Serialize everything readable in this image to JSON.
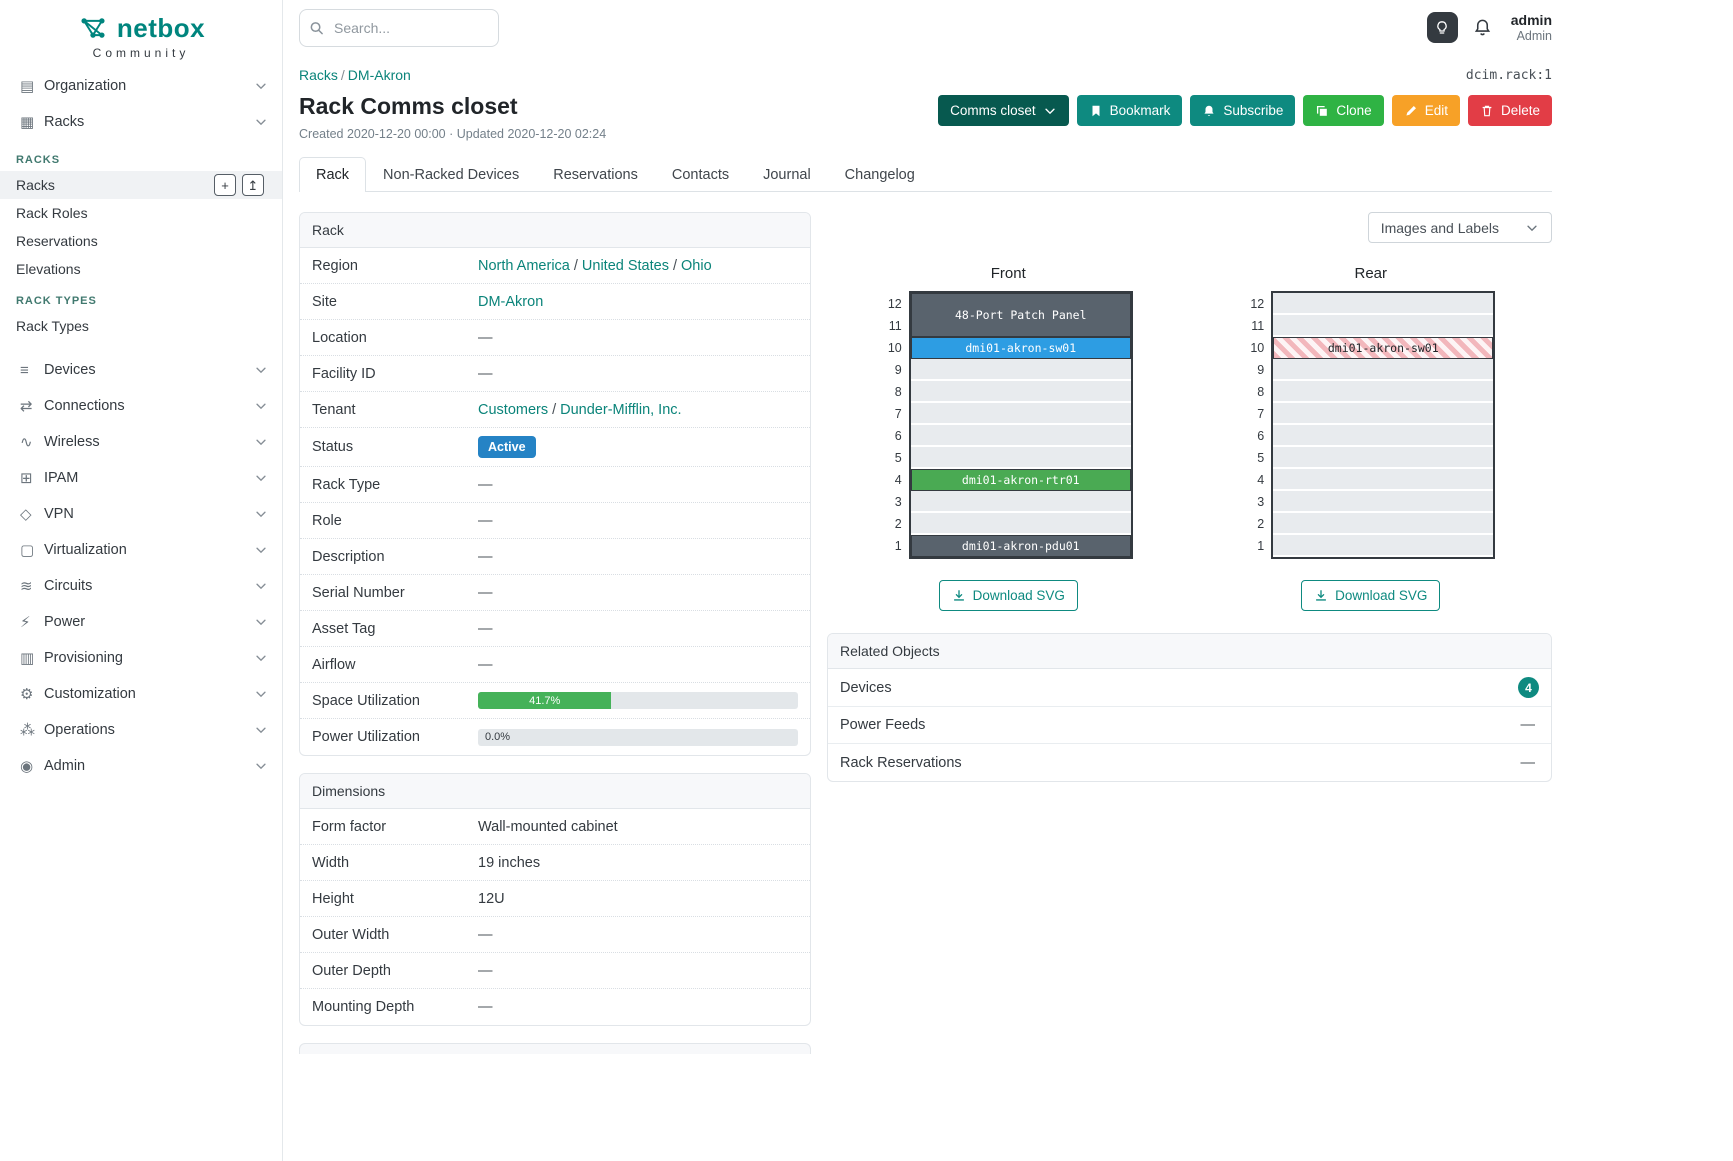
{
  "theme": {
    "teal": "#0e8a80",
    "teal_dark": "#07594f",
    "green": "#2fb344",
    "orange": "#f7a127",
    "red": "#e23d46",
    "link": "#0b847a"
  },
  "brand": {
    "name": "netbox",
    "subtitle": "Community"
  },
  "topbar": {
    "search_placeholder": "Search...",
    "user_name": "admin",
    "user_role": "Admin"
  },
  "icons": {
    "search": "magnifier",
    "theme_toggle": "lightbulb",
    "notifications": "bell",
    "bookmark": "bookmark",
    "subscribe": "bell",
    "clone": "copy",
    "edit": "pencil",
    "delete": "trash",
    "download": "download-arrow",
    "dropdown": "chevron-down",
    "add": "+",
    "import": "↥"
  },
  "sidebar": {
    "items_top": [
      {
        "label": "Organization",
        "glyph": "▤"
      },
      {
        "label": "Racks",
        "glyph": "▦",
        "expanded": true
      }
    ],
    "rack_groups": [
      {
        "header": "RACKS",
        "items": [
          {
            "label": "Racks",
            "active": true,
            "has_actions": true
          },
          {
            "label": "Rack Roles"
          },
          {
            "label": "Reservations"
          },
          {
            "label": "Elevations"
          }
        ]
      },
      {
        "header": "RACK TYPES",
        "items": [
          {
            "label": "Rack Types"
          }
        ]
      }
    ],
    "items_bottom": [
      {
        "label": "Devices",
        "glyph": "≡"
      },
      {
        "label": "Connections",
        "glyph": "⇄"
      },
      {
        "label": "Wireless",
        "glyph": "∿"
      },
      {
        "label": "IPAM",
        "glyph": "⊞"
      },
      {
        "label": "VPN",
        "glyph": "◇"
      },
      {
        "label": "Virtualization",
        "glyph": "▢"
      },
      {
        "label": "Circuits",
        "glyph": "≋"
      },
      {
        "label": "Power",
        "glyph": "⚡"
      },
      {
        "label": "Provisioning",
        "glyph": "▥"
      },
      {
        "label": "Customization",
        "glyph": "⚙"
      },
      {
        "label": "Operations",
        "glyph": "⁂"
      },
      {
        "label": "Admin",
        "glyph": "◉"
      }
    ]
  },
  "breadcrumb": {
    "items": [
      "Racks",
      "DM-Akron"
    ],
    "object_id": "dcim.rack:1"
  },
  "page": {
    "title": "Rack Comms closet",
    "meta": "Created 2020-12-20 00:00 · Updated 2020-12-20 02:24"
  },
  "actions": {
    "status_dropdown": "Comms closet",
    "bookmark": "Bookmark",
    "subscribe": "Subscribe",
    "clone": "Clone",
    "edit": "Edit",
    "delete": "Delete"
  },
  "tabs": [
    {
      "label": "Rack",
      "active": true
    },
    {
      "label": "Non-Racked Devices"
    },
    {
      "label": "Reservations"
    },
    {
      "label": "Contacts"
    },
    {
      "label": "Journal"
    },
    {
      "label": "Changelog"
    }
  ],
  "rack_panel": {
    "title": "Rack",
    "rows": [
      {
        "label": "Region",
        "type": "links",
        "links": [
          "North America",
          "United States",
          "Ohio"
        ]
      },
      {
        "label": "Site",
        "type": "links",
        "links": [
          "DM-Akron"
        ]
      },
      {
        "label": "Location",
        "type": "dash",
        "text": "—"
      },
      {
        "label": "Facility ID",
        "type": "dash",
        "text": "—"
      },
      {
        "label": "Tenant",
        "type": "links",
        "links": [
          "Customers",
          "Dunder-Mifflin, Inc."
        ]
      },
      {
        "label": "Status",
        "type": "badge",
        "text": "Active",
        "color": "#2583c5"
      },
      {
        "label": "Rack Type",
        "type": "dash",
        "text": "—"
      },
      {
        "label": "Role",
        "type": "dash",
        "text": "—"
      },
      {
        "label": "Description",
        "type": "dash",
        "text": "—"
      },
      {
        "label": "Serial Number",
        "type": "dash",
        "text": "—"
      },
      {
        "label": "Asset Tag",
        "type": "dash",
        "text": "—"
      },
      {
        "label": "Airflow",
        "type": "dash",
        "text": "—"
      },
      {
        "label": "Space Utilization",
        "type": "progress",
        "value": 41.7,
        "text": "41.7%",
        "color": "#45b259"
      },
      {
        "label": "Power Utilization",
        "type": "progress",
        "value": 0,
        "text": "0.0%",
        "color": "#45b259"
      }
    ]
  },
  "dimensions_panel": {
    "title": "Dimensions",
    "rows": [
      {
        "label": "Form factor",
        "type": "text",
        "value": "Wall-mounted cabinet"
      },
      {
        "label": "Width",
        "type": "text",
        "value": "19 inches"
      },
      {
        "label": "Height",
        "type": "text",
        "value": "12U"
      },
      {
        "label": "Outer Width",
        "type": "dash",
        "text": "—"
      },
      {
        "label": "Outer Depth",
        "type": "dash",
        "text": "—"
      },
      {
        "label": "Mounting Depth",
        "type": "dash",
        "text": "—"
      }
    ]
  },
  "elevations": {
    "selector_label": "Images and Labels",
    "download_label": "Download SVG",
    "units": [
      12,
      11,
      10,
      9,
      8,
      7,
      6,
      5,
      4,
      3,
      2,
      1
    ],
    "views": [
      {
        "name": "Front",
        "devices": [
          {
            "name": "48-Port Patch Panel",
            "top_unit": 12,
            "u_height": 2,
            "color": "#59636d",
            "text": "#ffffff"
          },
          {
            "name": "dmi01-akron-sw01",
            "top_unit": 10,
            "u_height": 1,
            "color": "#2d9de3",
            "text": "#ffffff"
          },
          {
            "name": "dmi01-akron-rtr01",
            "top_unit": 4,
            "u_height": 1,
            "color": "#4aaa53",
            "text": "#ffffff"
          },
          {
            "name": "dmi01-akron-pdu01",
            "top_unit": 1,
            "u_height": 1,
            "color": "#59636d",
            "text": "#ffffff"
          }
        ]
      },
      {
        "name": "Rear",
        "devices": [
          {
            "name": "dmi01-akron-sw01",
            "top_unit": 10,
            "u_height": 1,
            "hatched": true,
            "text": "#212529"
          }
        ]
      }
    ]
  },
  "related_objects": {
    "title": "Related Objects",
    "rows": [
      {
        "label": "Devices",
        "count": "4"
      },
      {
        "label": "Power Feeds",
        "dash": "—"
      },
      {
        "label": "Rack Reservations",
        "dash": "—"
      }
    ]
  }
}
